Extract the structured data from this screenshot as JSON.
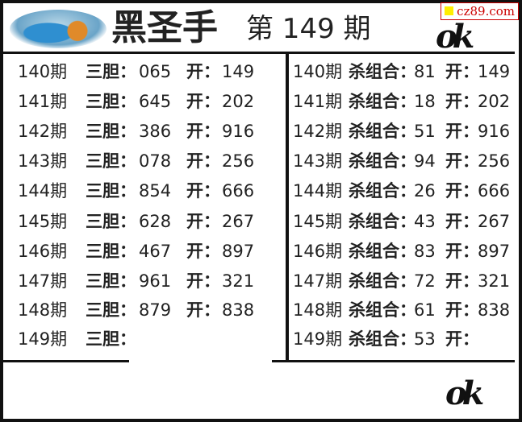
{
  "header": {
    "title": "黑圣手",
    "issue": "第 149 期",
    "watermark": "cz89.com",
    "ok_mark": "ok"
  },
  "left": {
    "label": "三胆：",
    "open_label": "开：",
    "rows": [
      {
        "period": "140期",
        "value": "065",
        "open": "149"
      },
      {
        "period": "141期",
        "value": "645",
        "open": "202"
      },
      {
        "period": "142期",
        "value": "386",
        "open": "916"
      },
      {
        "period": "143期",
        "value": "078",
        "open": "256"
      },
      {
        "period": "144期",
        "value": "854",
        "open": "666"
      },
      {
        "period": "145期",
        "value": "628",
        "open": "267"
      },
      {
        "period": "146期",
        "value": "467",
        "open": "897"
      },
      {
        "period": "147期",
        "value": "961",
        "open": "321"
      },
      {
        "period": "148期",
        "value": "879",
        "open": "838"
      },
      {
        "period": "149期",
        "value": "",
        "open": null
      }
    ]
  },
  "right": {
    "label": "杀组合：",
    "open_label": "开：",
    "rows": [
      {
        "period": "140期",
        "value": "81",
        "open": "149"
      },
      {
        "period": "141期",
        "value": "18",
        "open": "202"
      },
      {
        "period": "142期",
        "value": "51",
        "open": "916"
      },
      {
        "period": "143期",
        "value": "94",
        "open": "256"
      },
      {
        "period": "144期",
        "value": "26",
        "open": "666"
      },
      {
        "period": "145期",
        "value": "43",
        "open": "267"
      },
      {
        "period": "146期",
        "value": "83",
        "open": "897"
      },
      {
        "period": "147期",
        "value": "72",
        "open": "321"
      },
      {
        "period": "148期",
        "value": "61",
        "open": "838"
      },
      {
        "period": "149期",
        "value": "53",
        "open": ""
      }
    ]
  }
}
